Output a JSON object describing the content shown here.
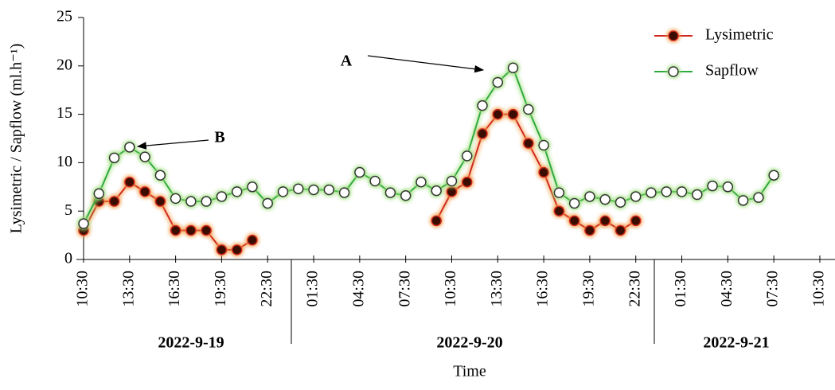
{
  "chart_data": {
    "type": "line",
    "y_label": "Lysimetric / Sapflow (ml.h⁻¹)",
    "x_label": "Time",
    "categories": [
      "10:30",
      null,
      null,
      "13:30",
      null,
      null,
      "16:30",
      null,
      null,
      "19:30",
      null,
      null,
      "22:30",
      null,
      null,
      "01:30",
      null,
      null,
      "04:30",
      null,
      null,
      "07:30",
      null,
      null,
      "10:30",
      null,
      null,
      "13:30",
      null,
      null,
      "16:30",
      null,
      null,
      "19:30",
      null,
      null,
      "22:30",
      null,
      null,
      "01:30",
      null,
      null,
      "04:30",
      null,
      null,
      "07:30",
      null,
      null,
      "10:30"
    ],
    "date_groups": [
      "2022-9-19",
      "2022-9-20",
      "2022-9-21"
    ],
    "series": [
      {
        "name": "Lysimetric",
        "color": "#d0281c",
        "marker_fill": "#3a0a05",
        "glow": "#f59a4a",
        "values": [
          3,
          6,
          6,
          8,
          7,
          6,
          3,
          3,
          3,
          1,
          1,
          2,
          null,
          null,
          null,
          null,
          null,
          null,
          null,
          null,
          null,
          null,
          null,
          4,
          7,
          8,
          13,
          15,
          15,
          12,
          9,
          5,
          4,
          3,
          4,
          3,
          4,
          null,
          null,
          null,
          null,
          null,
          null,
          null,
          null,
          null,
          null,
          null,
          null
        ]
      },
      {
        "name": "Sapflow",
        "color": "#2faa3c",
        "marker_fill": "#ffffff",
        "glow": "#9be07a",
        "values": [
          3.7,
          6.8,
          10.5,
          11.6,
          10.6,
          8.7,
          6.3,
          6.0,
          6.0,
          6.5,
          7.0,
          7.5,
          5.8,
          7.0,
          7.3,
          7.2,
          7.2,
          6.9,
          9.0,
          8.1,
          6.9,
          6.6,
          8.0,
          7.1,
          8.1,
          10.7,
          15.9,
          18.3,
          19.8,
          15.5,
          11.8,
          6.9,
          5.8,
          6.5,
          6.2,
          5.9,
          6.5,
          6.9,
          7.0,
          7.0,
          6.7,
          7.6,
          7.5,
          6.1,
          6.4,
          8.7,
          null,
          null,
          null
        ]
      }
    ],
    "annotations": [
      "A",
      "B"
    ],
    "ylim": [
      0,
      25
    ],
    "yticks": [
      0,
      5,
      10,
      15,
      20,
      25
    ],
    "legend": "top-right"
  }
}
